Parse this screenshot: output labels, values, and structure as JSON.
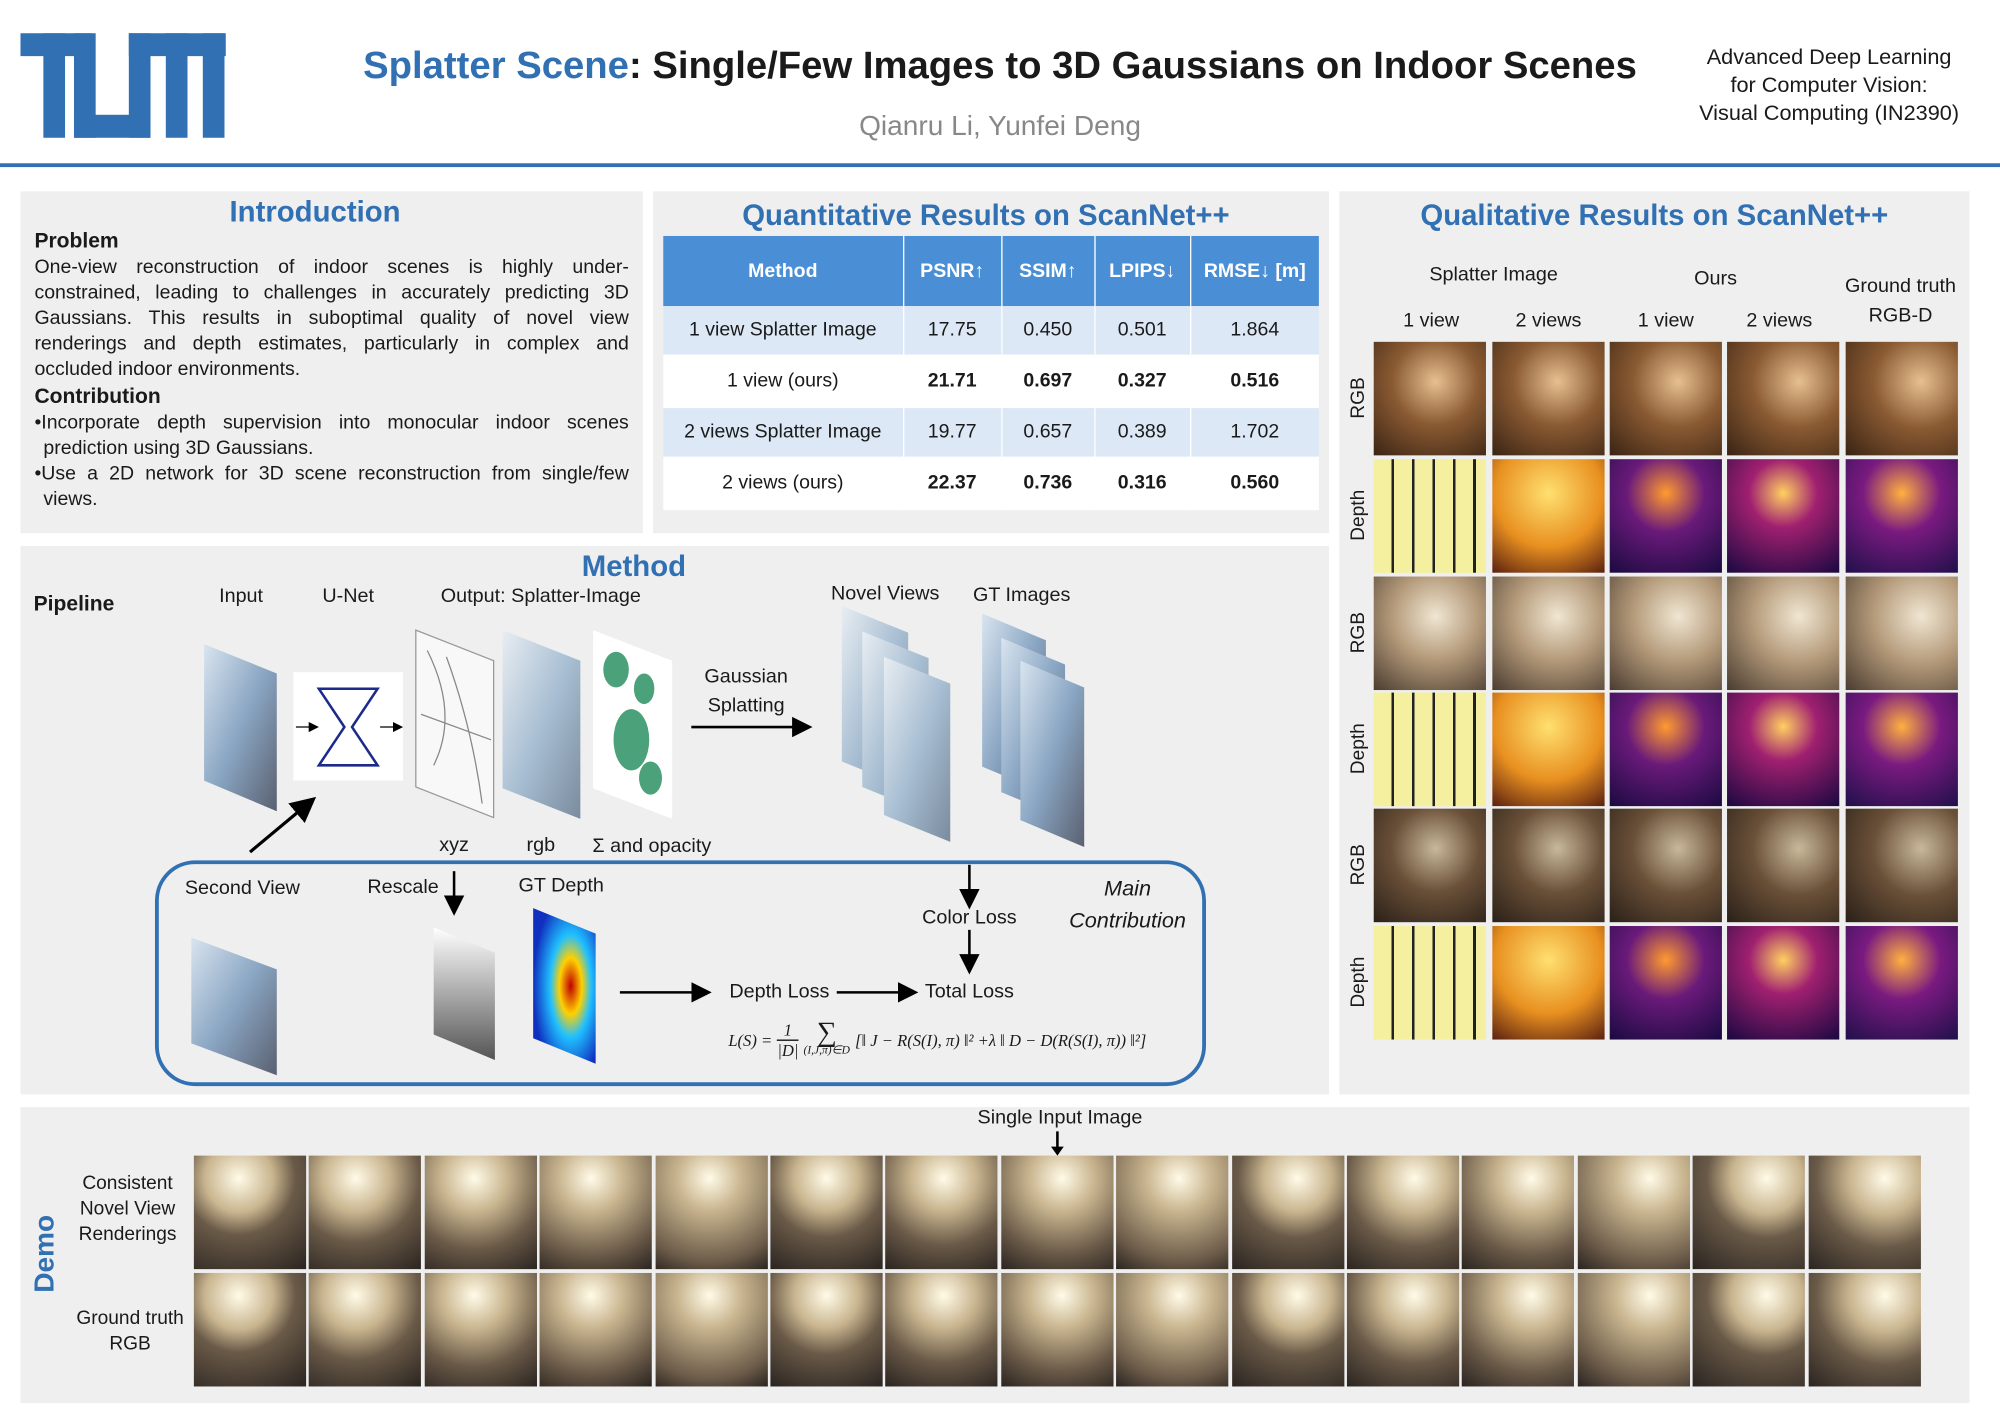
{
  "header": {
    "title_highlight": "Splatter Scene",
    "title_rest": ": Single/Few Images to 3D Gaussians on Indoor Scenes",
    "authors": "Qianru Li, Yunfei Deng",
    "course": [
      "Advanced Deep Learning",
      "for Computer Vision:",
      "Visual Computing (IN2390)"
    ]
  },
  "introduction": {
    "title": "Introduction",
    "problem_heading": "Problem",
    "problem_text": "One-view reconstruction of indoor scenes is highly under-constrained, leading to challenges in accurately predicting 3D Gaussians. This results in suboptimal quality of novel view renderings and depth estimates, particularly in complex and occluded indoor environments.",
    "contribution_heading": "Contribution",
    "contributions": [
      "•Incorporate depth supervision into monocular indoor scenes prediction using 3D Gaussians.",
      "•Use a 2D network for 3D scene reconstruction from single/few views."
    ]
  },
  "quantitative": {
    "title": "Quantitative Results on ScanNet++",
    "table": {
      "header": [
        "Method",
        "PSNR↑",
        "SSIM↑",
        "LPIPS↓",
        "RMSE↓ [m]"
      ],
      "rows": [
        [
          "1 view Splatter Image",
          "17.75",
          "0.450",
          "0.501",
          "1.864"
        ],
        [
          "1 view (ours)",
          "21.71",
          "0.697",
          "0.327",
          "0.516"
        ],
        [
          "2 views Splatter Image",
          "19.77",
          "0.657",
          "0.389",
          "1.702"
        ],
        [
          "2 views (ours)",
          "22.37",
          "0.736",
          "0.316",
          "0.560"
        ]
      ]
    }
  },
  "qualitative": {
    "title": "Qualitative Results on ScanNet++",
    "group_labels": [
      "Splatter Image",
      "Ours",
      "Ground truth RGB-D"
    ],
    "column_labels": [
      "1 view",
      "2 views",
      "1 view",
      "2 views"
    ],
    "row_labels": [
      "RGB",
      "Depth",
      "RGB",
      "Depth",
      "RGB",
      "Depth"
    ]
  },
  "method": {
    "title": "Method",
    "pipeline_label": "Pipeline",
    "input": "Input",
    "unet": "U-Net",
    "output": "Output: Splatter-Image",
    "novel_views": "Novel Views",
    "gt_images": "GT Images",
    "gaussian_splatting": "Gaussian Splatting",
    "xyz": "xyz",
    "rgb": "rgb",
    "sigma_opacity": "Σ and opacity",
    "second_view": "Second View",
    "rescale": "Rescale",
    "gt_depth": "GT Depth",
    "color_loss": "Color Loss",
    "main_contribution": "Main Contribution",
    "depth_loss": "Depth Loss",
    "total_loss": "Total Loss",
    "formula": {
      "lhs": "L(S) =",
      "numerator": "1",
      "denominator": "|D|",
      "sum": "∑",
      "subscript": "(I,J,π)∈D",
      "body": "[‖ J − R(S(I), π) ‖² +λ ‖ D − D(R(S(I), π)) ‖²]"
    }
  },
  "demo": {
    "title": "Demo",
    "input_label": "Single Input Image",
    "row_labels": [
      "Consistent Novel View Renderings",
      "Ground truth RGB"
    ]
  }
}
